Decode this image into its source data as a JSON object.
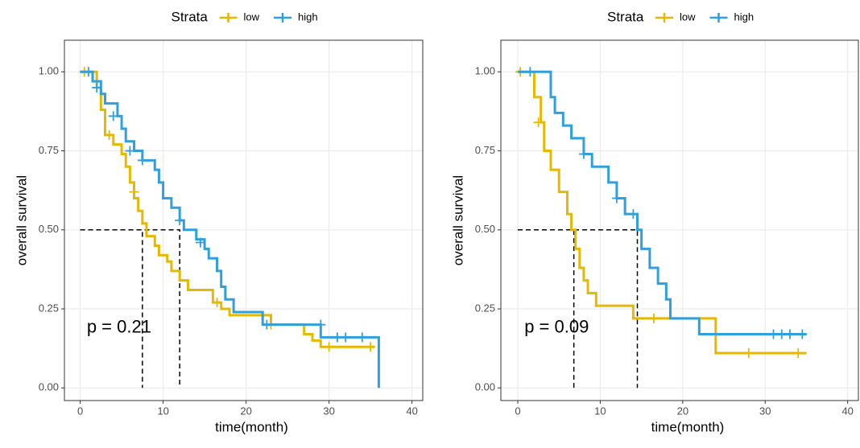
{
  "chart_data": [
    {
      "type": "step",
      "legend_title": "Strata",
      "xlabel": "time(month)",
      "ylabel": "overall survival",
      "annotation": "p = 0.21",
      "xlim": [
        -1.9,
        41.3
      ],
      "ylim": [
        -0.04,
        1.1
      ],
      "xticks": [
        0,
        10,
        20,
        30,
        40
      ],
      "yticks": [
        {
          "value": 0,
          "label": "0.00"
        },
        0.25,
        {
          "value": 0.5,
          "label": "0.50"
        },
        0.75,
        {
          "value": 1,
          "label": "1.00"
        }
      ],
      "grid": true,
      "median_y": 0.5,
      "series": [
        {
          "name": "low",
          "color": "#E7B800",
          "median": 7.5,
          "x": [
            0,
            2,
            2.5,
            3,
            4,
            5,
            5.5,
            6,
            6.5,
            7,
            7.5,
            8,
            9,
            9.5,
            10.5,
            11,
            12,
            13,
            16,
            17,
            18,
            22,
            23,
            27,
            28,
            29,
            35.5
          ],
          "values": [
            1,
            0.95,
            0.88,
            0.8,
            0.77,
            0.74,
            0.7,
            0.65,
            0.6,
            0.56,
            0.52,
            0.48,
            0.45,
            0.42,
            0.4,
            0.37,
            0.34,
            0.31,
            0.27,
            0.25,
            0.23,
            0.23,
            0.2,
            0.17,
            0.15,
            0.13,
            0.13
          ],
          "censor_x": [
            0.5,
            3.5,
            6.5,
            16.5,
            23,
            30,
            35
          ],
          "censor_values": [
            1,
            0.8,
            0.62,
            0.27,
            0.2,
            0.13,
            0.13
          ]
        },
        {
          "name": "high",
          "color": "#2E9FDF",
          "median": 12,
          "x": [
            0,
            1.5,
            2.5,
            3,
            4.5,
            5,
            5.5,
            6.5,
            7.5,
            9,
            9.5,
            10,
            11,
            12,
            12.5,
            14,
            15,
            15.5,
            16.5,
            17,
            17.5,
            18.5,
            22,
            29,
            36
          ],
          "values": [
            1,
            0.97,
            0.93,
            0.9,
            0.86,
            0.82,
            0.78,
            0.75,
            0.72,
            0.69,
            0.65,
            0.6,
            0.57,
            0.53,
            0.5,
            0.47,
            0.44,
            0.41,
            0.37,
            0.32,
            0.28,
            0.24,
            0.2,
            0.16,
            0
          ],
          "censor_x": [
            1,
            2,
            4,
            6,
            7.5,
            12,
            14.5,
            22.5,
            29,
            31,
            32,
            34
          ],
          "censor_values": [
            1,
            0.95,
            0.86,
            0.75,
            0.72,
            0.53,
            0.46,
            0.2,
            0.2,
            0.16,
            0.16,
            0.16
          ]
        }
      ]
    },
    {
      "type": "step",
      "legend_title": "Strata",
      "xlabel": "time(month)",
      "ylabel": "overall survival",
      "annotation": "p = 0.09",
      "xlim": [
        -2.05,
        41.3
      ],
      "ylim": [
        -0.04,
        1.1
      ],
      "xticks": [
        0,
        10,
        20,
        30,
        40
      ],
      "yticks": [
        {
          "value": 0,
          "label": "0.00"
        },
        0.25,
        {
          "value": 0.5,
          "label": "0.50"
        },
        0.75,
        {
          "value": 1,
          "label": "1.00"
        }
      ],
      "grid": true,
      "median_y": 0.5,
      "series": [
        {
          "name": "low",
          "color": "#E7B800",
          "median": 6.8,
          "x": [
            0,
            2,
            2.8,
            3.2,
            4,
            5,
            6,
            6.5,
            7,
            7.5,
            8,
            8.5,
            9.5,
            14,
            24,
            35
          ],
          "values": [
            1,
            0.92,
            0.84,
            0.75,
            0.69,
            0.62,
            0.55,
            0.5,
            0.44,
            0.38,
            0.34,
            0.3,
            0.26,
            0.22,
            0.11,
            0.11
          ],
          "censor_x": [
            0.3,
            2.5,
            16.5,
            28,
            34
          ],
          "censor_values": [
            1,
            0.84,
            0.22,
            0.11,
            0.11
          ]
        },
        {
          "name": "high",
          "color": "#2E9FDF",
          "median": 14.5,
          "x": [
            0,
            4,
            4.5,
            5.5,
            6.5,
            8,
            9,
            11,
            12,
            13,
            14.5,
            15,
            16,
            17,
            18,
            18.5,
            22,
            35
          ],
          "values": [
            1,
            0.92,
            0.87,
            0.83,
            0.79,
            0.74,
            0.7,
            0.65,
            0.6,
            0.55,
            0.5,
            0.44,
            0.38,
            0.33,
            0.28,
            0.22,
            0.17,
            0.17
          ],
          "censor_x": [
            1.5,
            8,
            12,
            14,
            31,
            32,
            33,
            34.5
          ],
          "censor_values": [
            1,
            0.74,
            0.6,
            0.55,
            0.17,
            0.17,
            0.17,
            0.17
          ]
        }
      ]
    }
  ]
}
